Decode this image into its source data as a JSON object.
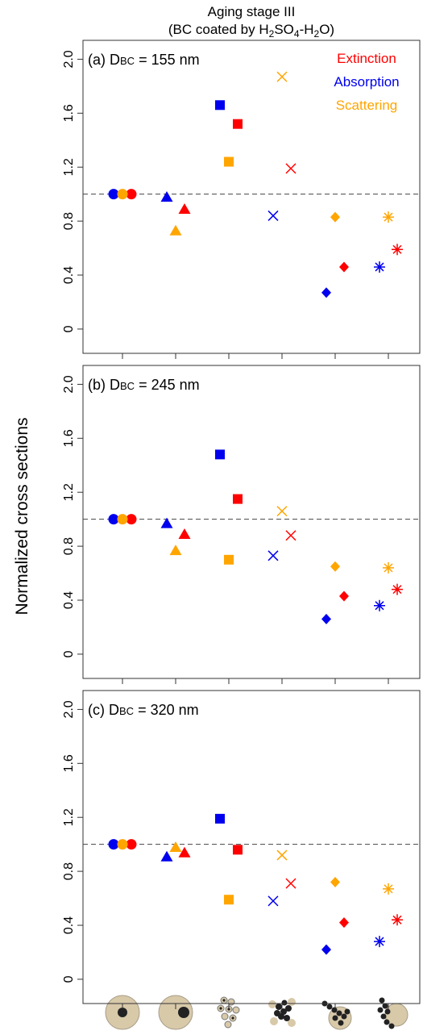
{
  "title": "Aging stage III",
  "subtitle": [
    "(BC coated by H",
    "2",
    "SO",
    "4",
    "-H",
    "2",
    "O)"
  ],
  "y_label": "Normalized cross sections",
  "chart_data": [
    {
      "type": "scatter",
      "label": [
        "(a) D",
        "BC",
        " = 155 nm"
      ],
      "categories": [
        null,
        null,
        null,
        null,
        null,
        null
      ],
      "markers": [
        "circle",
        "triangle",
        "square",
        "cross",
        "diamond",
        "asterisk"
      ],
      "series": [
        {
          "name": "Extinction",
          "color": "#ff0000",
          "values": [
            1.0,
            0.89,
            1.52,
            1.19,
            0.46,
            0.59
          ]
        },
        {
          "name": "Absorption",
          "color": "#0000ee",
          "values": [
            1.0,
            0.98,
            1.66,
            0.84,
            0.27,
            0.46
          ]
        },
        {
          "name": "Scattering",
          "color": "#ffa500",
          "values": [
            1.0,
            0.73,
            1.24,
            1.87,
            0.83,
            0.83
          ]
        }
      ],
      "reference_line": 1.0,
      "ylim": [
        -0.18,
        2.14
      ],
      "yticks": [
        0,
        0.4,
        0.8,
        1.2,
        1.6,
        {
          "value": 2,
          "label": "2.0"
        }
      ]
    },
    {
      "type": "scatter",
      "label": [
        "(b) D",
        "BC",
        " = 245 nm"
      ],
      "categories": [
        null,
        null,
        null,
        null,
        null,
        null
      ],
      "markers": [
        "circle",
        "triangle",
        "square",
        "cross",
        "diamond",
        "asterisk"
      ],
      "series": [
        {
          "color": "#ff0000",
          "values": [
            1.0,
            0.89,
            1.15,
            0.88,
            0.43,
            0.48
          ]
        },
        {
          "color": "#0000ee",
          "values": [
            1.0,
            0.97,
            1.48,
            0.73,
            0.26,
            0.36
          ]
        },
        {
          "color": "#ffa500",
          "values": [
            1.0,
            0.77,
            0.7,
            1.06,
            0.65,
            0.64
          ]
        }
      ],
      "reference_line": 1.0,
      "ylim": [
        -0.18,
        2.14
      ],
      "yticks": [
        0,
        0.4,
        0.8,
        1.2,
        1.6,
        {
          "value": 2,
          "label": "2.0"
        }
      ]
    },
    {
      "type": "scatter",
      "label": [
        "(c) D",
        "BC",
        " = 320 nm"
      ],
      "categories": [
        null,
        null,
        null,
        null,
        null,
        null
      ],
      "markers": [
        "circle",
        "triangle",
        "square",
        "cross",
        "diamond",
        "asterisk"
      ],
      "series": [
        {
          "color": "#ff0000",
          "values": [
            1.0,
            0.94,
            0.96,
            0.71,
            0.42,
            0.44
          ]
        },
        {
          "color": "#0000ee",
          "values": [
            1.0,
            0.91,
            1.19,
            0.58,
            0.22,
            0.28
          ]
        },
        {
          "color": "#ffa500",
          "values": [
            1.0,
            0.98,
            0.59,
            0.92,
            0.72,
            0.67
          ]
        }
      ],
      "reference_line": 1.0,
      "ylim": [
        -0.18,
        2.14
      ],
      "yticks": [
        0,
        0.4,
        0.8,
        1.2,
        1.6,
        {
          "value": 2,
          "label": "2.0"
        }
      ]
    }
  ]
}
